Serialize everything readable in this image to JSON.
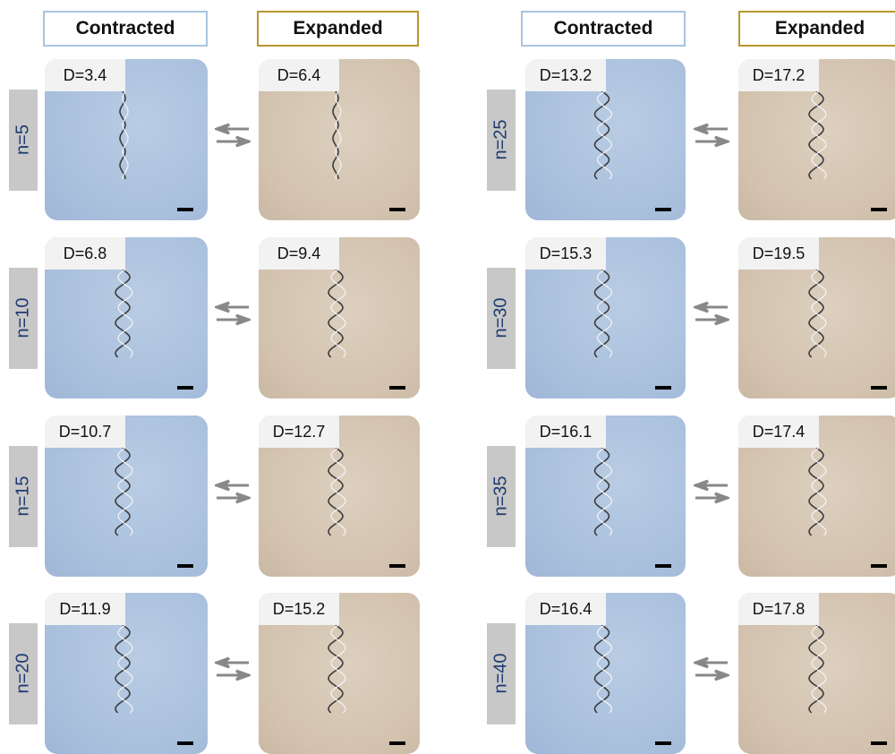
{
  "panels": [
    {
      "headers": {
        "contracted": "Contracted",
        "expanded": "Expanded"
      },
      "rows": [
        {
          "n": "n=5",
          "contracted": "D=3.4",
          "expanded": "D=6.4"
        },
        {
          "n": "n=10",
          "contracted": "D=6.8",
          "expanded": "D=9.4"
        },
        {
          "n": "n=15",
          "contracted": "D=10.7",
          "expanded": "D=12.7"
        },
        {
          "n": "n=20",
          "contracted": "D=11.9",
          "expanded": "D=15.2"
        }
      ]
    },
    {
      "headers": {
        "contracted": "Contracted",
        "expanded": "Expanded"
      },
      "rows": [
        {
          "n": "n=25",
          "contracted": "D=13.2",
          "expanded": "D=17.2"
        },
        {
          "n": "n=30",
          "contracted": "D=15.3",
          "expanded": "D=19.5"
        },
        {
          "n": "n=35",
          "contracted": "D=16.1",
          "expanded": "D=17.4"
        },
        {
          "n": "n=40",
          "contracted": "D=16.4",
          "expanded": "D=17.8"
        }
      ]
    }
  ]
}
